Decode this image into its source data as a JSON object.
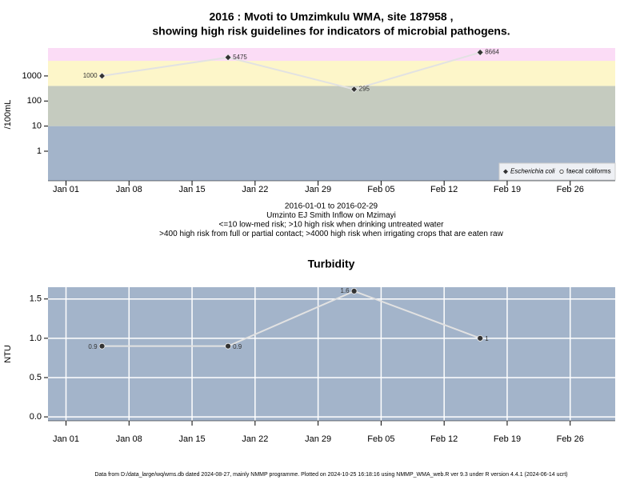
{
  "chart_data": [
    {
      "type": "line",
      "title": [
        "2016 : Mvoti to Umzimkulu WMA, site 187958 ,",
        "showing high risk guidelines for indicators of microbial pathogens."
      ],
      "y_label": "/100mL",
      "log_y": true,
      "ylim": [
        0.066,
        13000
      ],
      "yticks": [
        1,
        10,
        100,
        1000
      ],
      "band_edges": [
        10,
        400,
        4000
      ],
      "band_colors": [
        "#a3b4ca",
        "#c5cbbf",
        "#fdf6c9",
        "#fbdcf6"
      ],
      "x": [
        "Jan 05",
        "Jan 19",
        "Feb 02",
        "Feb 16"
      ],
      "xlim": [
        "Dec 30",
        "Mar 02"
      ],
      "xticks": [
        "Jan 01",
        "Jan 08",
        "Jan 15",
        "Jan 22",
        "Jan 29",
        "Feb 05",
        "Feb 12",
        "Feb 19",
        "Feb 26"
      ],
      "grid": false,
      "legend": "bottom-right",
      "series": [
        {
          "name": "Escherichia coli",
          "marker": "diamond",
          "color": "#333333",
          "line_color": "#e2e2e2",
          "values": [
            1000,
            5475,
            295,
            8664
          ]
        },
        {
          "name": "faecal coliforms",
          "marker": "circle",
          "color": "#333333",
          "line_color": "#e2e2e2",
          "values": [
            null,
            null,
            null,
            null
          ]
        }
      ],
      "notes": [
        "2016-01-01 to 2016-02-29",
        "Umzinto EJ Smith Inflow on Mzimayi",
        "<=10 low-med risk; >10 high risk when drinking untreated water",
        ">400 high risk from full or partial contact; >4000 high risk when irrigating crops that are eaten raw"
      ]
    },
    {
      "type": "line",
      "title": [
        "Turbidity"
      ],
      "y_label": "NTU",
      "log_y": false,
      "ylim": [
        -0.05,
        1.65
      ],
      "yticks": [
        {
          "value": 0,
          "label": "0.0"
        },
        {
          "value": 0.5,
          "label": "0.5"
        },
        {
          "value": 1,
          "label": "1.0"
        },
        {
          "value": 1.5,
          "label": "1.5"
        }
      ],
      "band_colors": [
        "#a3b4ca"
      ],
      "x": [
        "Jan 05",
        "Jan 19",
        "Feb 02",
        "Feb 16"
      ],
      "xlim": [
        "Dec 30",
        "Mar 02"
      ],
      "xticks": [
        "Jan 01",
        "Jan 08",
        "Jan 15",
        "Jan 22",
        "Jan 29",
        "Feb 05",
        "Feb 12",
        "Feb 19",
        "Feb 26"
      ],
      "grid": true,
      "series": [
        {
          "name": "Turbidity",
          "marker": "circle",
          "color": "#333333",
          "line_color": "#e2e2e2",
          "values": [
            0.9,
            0.9,
            1.6,
            1
          ]
        }
      ]
    }
  ],
  "footer": "Data from D:/data_large/wq/wms.db dated 2024-08-27, mainly NMMP programme. Plotted on 2024-10-25 16:18:16 using NMMP_WMA_web.R ver 9.3 under R version 4.4.1 (2024-06-14 ucrt)"
}
